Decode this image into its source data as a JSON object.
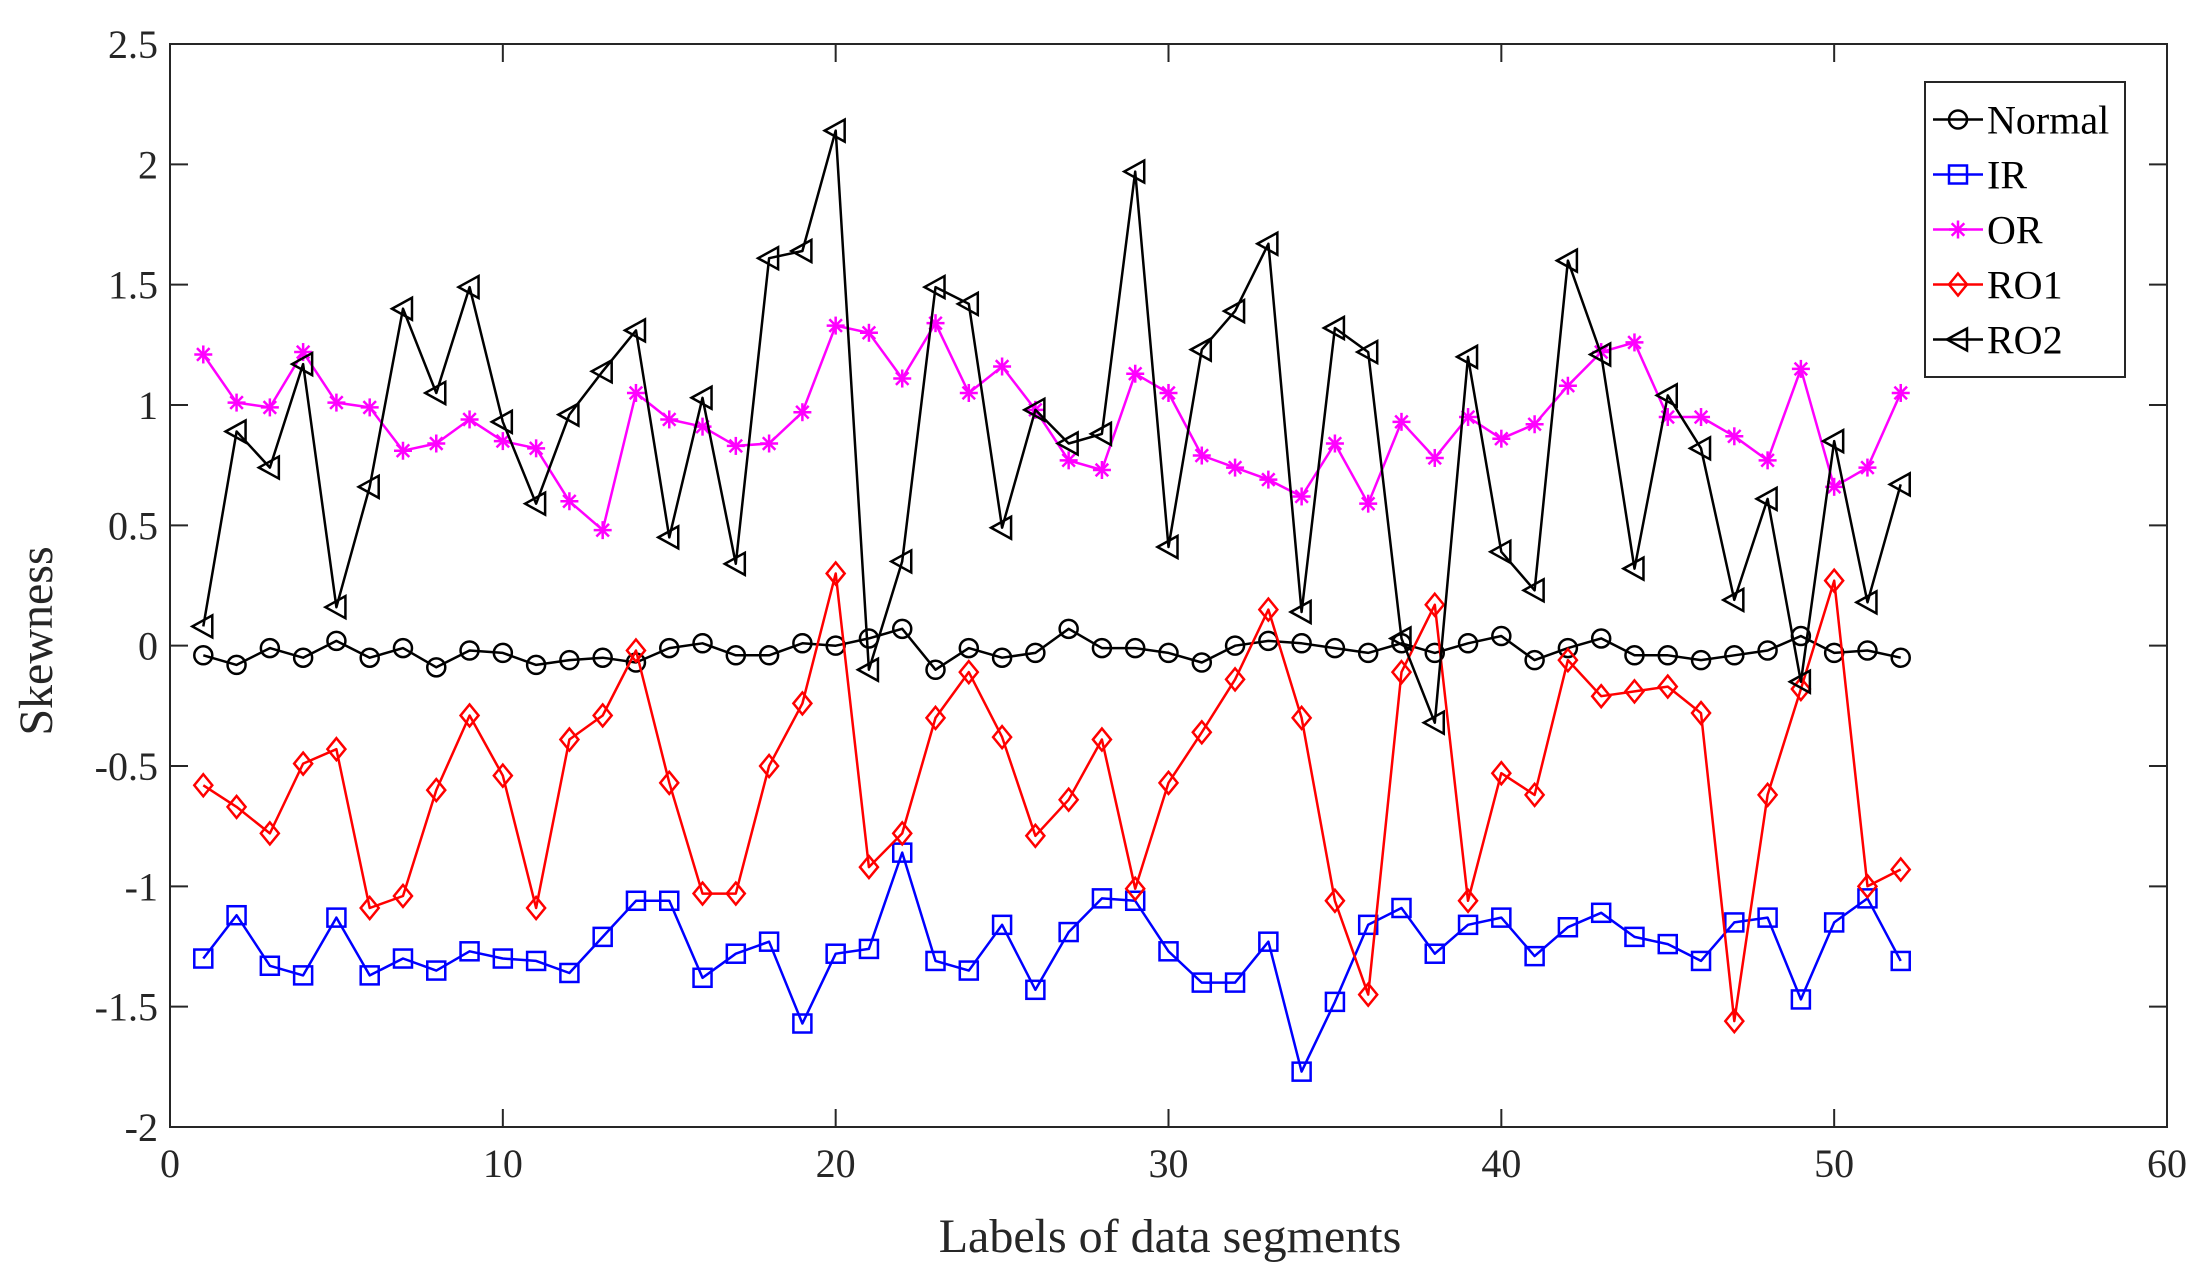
{
  "chart_data": {
    "type": "line",
    "title": "",
    "xlabel": "Labels of data segments",
    "ylabel": "Skewness",
    "xlim": [
      0,
      60
    ],
    "ylim": [
      -2,
      2.5
    ],
    "xticks": [
      0,
      10,
      20,
      30,
      40,
      50,
      60
    ],
    "yticks": [
      -2,
      -1.5,
      -1,
      -0.5,
      0,
      0.5,
      1,
      1.5,
      2,
      2.5
    ],
    "xtick_labels": [
      "0",
      "10",
      "20",
      "30",
      "40",
      "50",
      "60"
    ],
    "ytick_labels": [
      "-2",
      "-1.5",
      "-1",
      "-0.5",
      "0",
      "0.5",
      "1",
      "1.5",
      "2",
      "2.5"
    ],
    "grid": false,
    "legend_position": "top-right",
    "x": [
      1,
      2,
      3,
      4,
      5,
      6,
      7,
      8,
      9,
      10,
      11,
      12,
      13,
      14,
      15,
      16,
      17,
      18,
      19,
      20,
      21,
      22,
      23,
      24,
      25,
      26,
      27,
      28,
      29,
      30,
      31,
      32,
      33,
      34,
      35,
      36,
      37,
      38,
      39,
      40,
      41,
      42,
      43,
      44,
      45,
      46,
      47,
      48,
      49,
      50,
      51,
      52
    ],
    "series": [
      {
        "name": "Normal",
        "color": "#000000",
        "marker": "circle",
        "values": [
          -0.04,
          -0.08,
          -0.01,
          -0.05,
          0.02,
          -0.05,
          -0.01,
          -0.09,
          -0.02,
          -0.03,
          -0.08,
          -0.06,
          -0.05,
          -0.07,
          -0.01,
          0.01,
          -0.04,
          -0.04,
          0.01,
          0.0,
          0.03,
          0.07,
          -0.1,
          -0.01,
          -0.05,
          -0.03,
          0.07,
          -0.01,
          -0.01,
          -0.03,
          -0.07,
          0.0,
          0.02,
          0.01,
          -0.01,
          -0.03,
          0.01,
          -0.03,
          0.01,
          0.04,
          -0.06,
          -0.01,
          0.03,
          -0.04,
          -0.04,
          -0.06,
          -0.04,
          -0.02,
          0.04,
          -0.03,
          -0.02,
          -0.05
        ]
      },
      {
        "name": "IR",
        "color": "#0000ff",
        "marker": "square",
        "values": [
          -1.3,
          -1.12,
          -1.33,
          -1.37,
          -1.13,
          -1.37,
          -1.3,
          -1.35,
          -1.27,
          -1.3,
          -1.31,
          -1.36,
          -1.21,
          -1.06,
          -1.06,
          -1.38,
          -1.28,
          -1.23,
          -1.57,
          -1.28,
          -1.26,
          -0.86,
          -1.31,
          -1.35,
          -1.16,
          -1.43,
          -1.19,
          -1.05,
          -1.06,
          -1.27,
          -1.4,
          -1.4,
          -1.23,
          -1.77,
          -1.48,
          -1.16,
          -1.09,
          -1.28,
          -1.16,
          -1.13,
          -1.29,
          -1.17,
          -1.11,
          -1.21,
          -1.24,
          -1.31,
          -1.15,
          -1.13,
          -1.47,
          -1.15,
          -1.05,
          -1.31
        ]
      },
      {
        "name": "OR",
        "color": "#ff00ff",
        "marker": "asterisk",
        "values": [
          1.21,
          1.01,
          0.99,
          1.22,
          1.01,
          0.99,
          0.81,
          0.84,
          0.94,
          0.85,
          0.82,
          0.6,
          0.48,
          1.05,
          0.94,
          0.91,
          0.83,
          0.84,
          0.97,
          1.33,
          1.3,
          1.11,
          1.34,
          1.05,
          1.16,
          0.98,
          0.77,
          0.73,
          1.13,
          1.05,
          0.79,
          0.74,
          0.69,
          0.62,
          0.84,
          0.59,
          0.93,
          0.78,
          0.95,
          0.86,
          0.92,
          1.08,
          1.22,
          1.26,
          0.95,
          0.95,
          0.87,
          0.77,
          1.15,
          0.66,
          0.74,
          1.05
        ]
      },
      {
        "name": "RO1",
        "color": "#ff0000",
        "marker": "diamond",
        "values": [
          -0.58,
          -0.67,
          -0.78,
          -0.49,
          -0.43,
          -1.09,
          -1.04,
          -0.6,
          -0.29,
          -0.54,
          -1.09,
          -0.39,
          -0.29,
          -0.02,
          -0.57,
          -1.03,
          -1.03,
          -0.5,
          -0.24,
          0.3,
          -0.92,
          -0.78,
          -0.3,
          -0.11,
          -0.38,
          -0.79,
          -0.64,
          -0.39,
          -1.01,
          -0.57,
          -0.36,
          -0.14,
          0.15,
          -0.3,
          -1.06,
          -1.45,
          -0.11,
          0.17,
          -1.06,
          -0.53,
          -0.62,
          -0.06,
          -0.21,
          -0.19,
          -0.17,
          -0.28,
          -1.56,
          -0.62,
          -0.18,
          0.27,
          -1.0,
          -0.93
        ]
      },
      {
        "name": "RO2",
        "color": "#000000",
        "marker": "triangle-left",
        "values": [
          0.08,
          0.89,
          0.74,
          1.17,
          0.16,
          0.66,
          1.4,
          1.05,
          1.49,
          0.93,
          0.59,
          0.96,
          1.14,
          1.31,
          0.45,
          1.03,
          0.34,
          1.61,
          1.64,
          2.14,
          -0.1,
          0.35,
          1.49,
          1.42,
          0.49,
          0.98,
          0.84,
          0.88,
          1.97,
          0.41,
          1.23,
          1.39,
          1.67,
          0.14,
          1.32,
          1.22,
          0.03,
          -0.32,
          1.2,
          0.39,
          0.23,
          1.6,
          1.21,
          0.32,
          1.04,
          0.82,
          0.19,
          0.61,
          -0.15,
          0.85,
          0.18,
          0.67
        ]
      }
    ]
  }
}
